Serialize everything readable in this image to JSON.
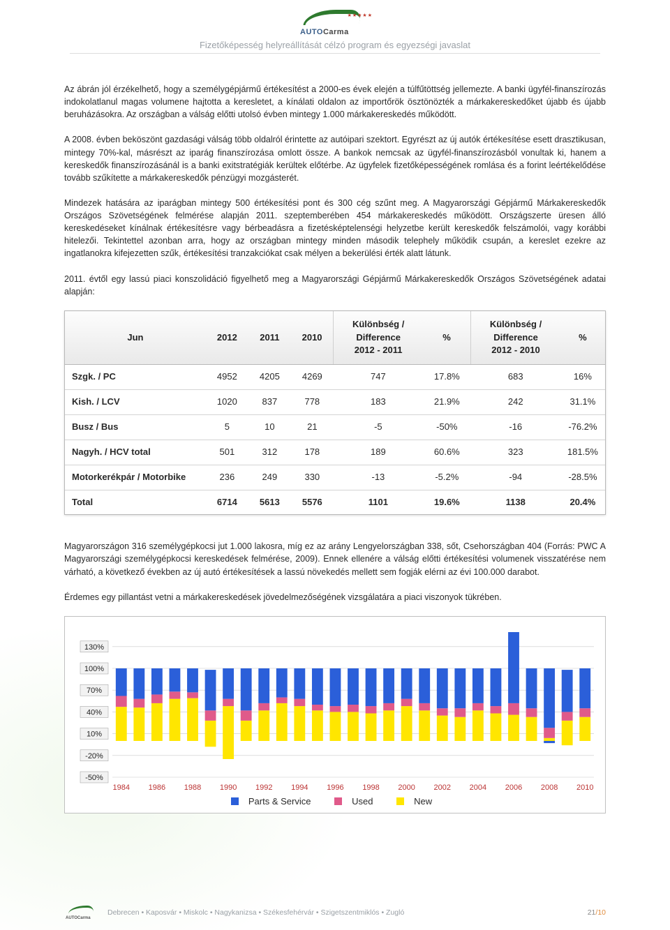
{
  "header": {
    "logo_text_1": "AUTO",
    "logo_text_2": "Carma",
    "stars": "★★★★★",
    "subtitle": "Fizetőképesség helyreállítását célzó program és egyezségi javaslat"
  },
  "paragraphs": {
    "p1": "Az ábrán jól érzékelhető, hogy a személygépjármű értékesítést a 2000-es évek elején a túlfűtöttség jellemezte. A banki ügyfél-finanszírozás indokolatlanul magas volumene hajtotta a keresletet, a kínálati oldalon az importőrök ösztönözték a márkakereskedőket újabb és újabb beruházásokra. Az országban a válság előtti utolsó évben mintegy 1.000 márkakereskedés működött.",
    "p2": "A 2008. évben beköszönt gazdasági válság több oldalról érintette az autóipari szektort. Egyrészt az új autók értékesítése esett drasztikusan, mintegy 70%-kal, másrészt az iparág finanszírozása omlott össze. A bankok nemcsak az ügyfél-finanszírozásból vonultak ki, hanem a kereskedők finanszírozásánál is a banki exitstratégiák kerültek előtérbe. Az ügyfelek fizetőképességének romlása és a forint leértékelődése tovább szűkítette a márkakereskedők pénzügyi mozgásterét.",
    "p3": "Mindezek hatására az iparágban mintegy 500 értékesítési pont és 300 cég szűnt meg. A Magyarországi Gépjármű Márkakereskedők Országos Szövetségének felmérése alapján 2011. szeptemberében 454 márkakereskedés működött. Országszerte üresen álló kereskedéseket kínálnak értékesítésre vagy bérbeadásra a fizetésképtelenségi helyzetbe került kereskedők felszámolói, vagy korábbi hitelezői. Tekintettel azonban arra, hogy az országban mintegy minden második telephely működik csupán, a kereslet ezekre az ingatlanokra kifejezetten szűk, értékesítési tranzakciókat csak mélyen a bekerülési érték alatt látunk.",
    "p4": "2011. évtől egy lassú piaci konszolidáció figyelhető meg a Magyarországi Gépjármű Márkakereskedők Országos Szövetségének adatai alapján:",
    "p5": "Magyarországon 316 személygépkocsi jut 1.000 lakosra, míg ez az arány Lengyelországban 338, sőt, Csehországban 404 (Forrás: PWC A Magyarországi személygépkocsi kereskedések felmérése, 2009). Ennek ellenére a válság előtti értékesítési volumenek visszatérése nem várható, a következő években az új autó értékesítések a lassú növekedés mellett sem fogják elérni az évi 100.000 darabot.",
    "p6": "Érdemes egy pillantást vetni a márkakereskedések jövedelmezőségének vizsgálatára a piaci viszonyok tükrében."
  },
  "table": {
    "type": "table",
    "columns": [
      "Jun",
      "2012",
      "2011",
      "2010",
      "Különbség / Difference\n2012 - 2011",
      "%",
      "Különbség / Difference\n2012 - 2010",
      "%"
    ],
    "rows": [
      [
        "Szgk. / PC",
        "4952",
        "4205",
        "4269",
        "747",
        "17.8%",
        "683",
        "16%"
      ],
      [
        "Kish. / LCV",
        "1020",
        "837",
        "778",
        "183",
        "21.9%",
        "242",
        "31.1%"
      ],
      [
        "Busz / Bus",
        "5",
        "10",
        "21",
        "-5",
        "-50%",
        "-16",
        "-76.2%"
      ],
      [
        "Nagyh. / HCV total",
        "501",
        "312",
        "178",
        "189",
        "60.6%",
        "323",
        "181.5%"
      ],
      [
        "Motorkerékpár / Motorbike",
        "236",
        "249",
        "330",
        "-13",
        "-5.2%",
        "-94",
        "-28.5%"
      ],
      [
        "Total",
        "6714",
        "5613",
        "5576",
        "1101",
        "19.6%",
        "1138",
        "20.4%"
      ]
    ],
    "header_bg": "#ececec",
    "border_color": "#b8b8b8",
    "font_size": 13
  },
  "chart": {
    "type": "stacked-bar",
    "background_color": "#ffffff",
    "grid_color": "#c8c8c8",
    "border_color": "#c0c0c0",
    "ylim": [
      -50,
      150
    ],
    "ytick_step": 30,
    "ytick_labels": [
      "-50%",
      "-20%",
      "10%",
      "40%",
      "70%",
      "100%",
      "130%"
    ],
    "ytick_values": [
      -50,
      -20,
      10,
      40,
      70,
      100,
      130
    ],
    "years": [
      "1984",
      "1986",
      "1988",
      "1990",
      "1992",
      "1994",
      "1996",
      "1998",
      "2000",
      "2002",
      "2004",
      "2006",
      "2008",
      "2010"
    ],
    "series": [
      {
        "name": "Parts & Service",
        "color": "#2b5fd9"
      },
      {
        "name": "Used",
        "color": "#e05a8a"
      },
      {
        "name": "New",
        "color": "#ffe600"
      }
    ],
    "data": [
      {
        "year": 1984,
        "parts": 38,
        "used": 15,
        "new": 47
      },
      {
        "year": 1985,
        "parts": 42,
        "used": 12,
        "new": 46
      },
      {
        "year": 1986,
        "parts": 36,
        "used": 12,
        "new": 52
      },
      {
        "year": 1987,
        "parts": 32,
        "used": 10,
        "new": 58
      },
      {
        "year": 1988,
        "parts": 33,
        "used": 8,
        "new": 59
      },
      {
        "year": 1989,
        "parts": 56,
        "used": 14,
        "new": 28,
        "new_neg": -8
      },
      {
        "year": 1990,
        "parts": 42,
        "used": 10,
        "new": 48,
        "new_neg": -25
      },
      {
        "year": 1991,
        "parts": 58,
        "used": 14,
        "new": 28
      },
      {
        "year": 1992,
        "parts": 48,
        "used": 10,
        "new": 42
      },
      {
        "year": 1993,
        "parts": 40,
        "used": 8,
        "new": 52
      },
      {
        "year": 1994,
        "parts": 42,
        "used": 10,
        "new": 48
      },
      {
        "year": 1995,
        "parts": 50,
        "used": 8,
        "new": 42
      },
      {
        "year": 1996,
        "parts": 52,
        "used": 8,
        "new": 40
      },
      {
        "year": 1997,
        "parts": 50,
        "used": 10,
        "new": 40
      },
      {
        "year": 1998,
        "parts": 52,
        "used": 10,
        "new": 38
      },
      {
        "year": 1999,
        "parts": 48,
        "used": 10,
        "new": 42
      },
      {
        "year": 2000,
        "parts": 42,
        "used": 10,
        "new": 48
      },
      {
        "year": 2001,
        "parts": 48,
        "used": 10,
        "new": 42
      },
      {
        "year": 2002,
        "parts": 55,
        "used": 10,
        "new": 35
      },
      {
        "year": 2003,
        "parts": 55,
        "used": 12,
        "new": 33
      },
      {
        "year": 2004,
        "parts": 48,
        "used": 10,
        "new": 42
      },
      {
        "year": 2005,
        "parts": 52,
        "used": 10,
        "new": 38
      },
      {
        "year": 2006,
        "parts": 98,
        "used": 16,
        "new": 36
      },
      {
        "year": 2007,
        "parts": 55,
        "used": 12,
        "new": 33
      },
      {
        "year": 2008,
        "parts": 82,
        "used": 14,
        "new": 4,
        "parts_neg": -3
      },
      {
        "year": 2009,
        "parts": 58,
        "used": 12,
        "new": 28,
        "new_neg": -6
      },
      {
        "year": 2010,
        "parts": 55,
        "used": 12,
        "new": 33
      }
    ],
    "legend_labels": {
      "parts": "Parts & Service",
      "used": "Used",
      "new": "New"
    },
    "axis_label_fontsize": 11,
    "bar_width_ratio": 0.62
  },
  "footer": {
    "cities": "Debrecen • Kaposvár • Miskolc • Nagykanizsa • Székesfehérvár • Szigetszentmiklós • Zugló",
    "page_current": "21",
    "page_sep": "/",
    "page_total": "10"
  }
}
